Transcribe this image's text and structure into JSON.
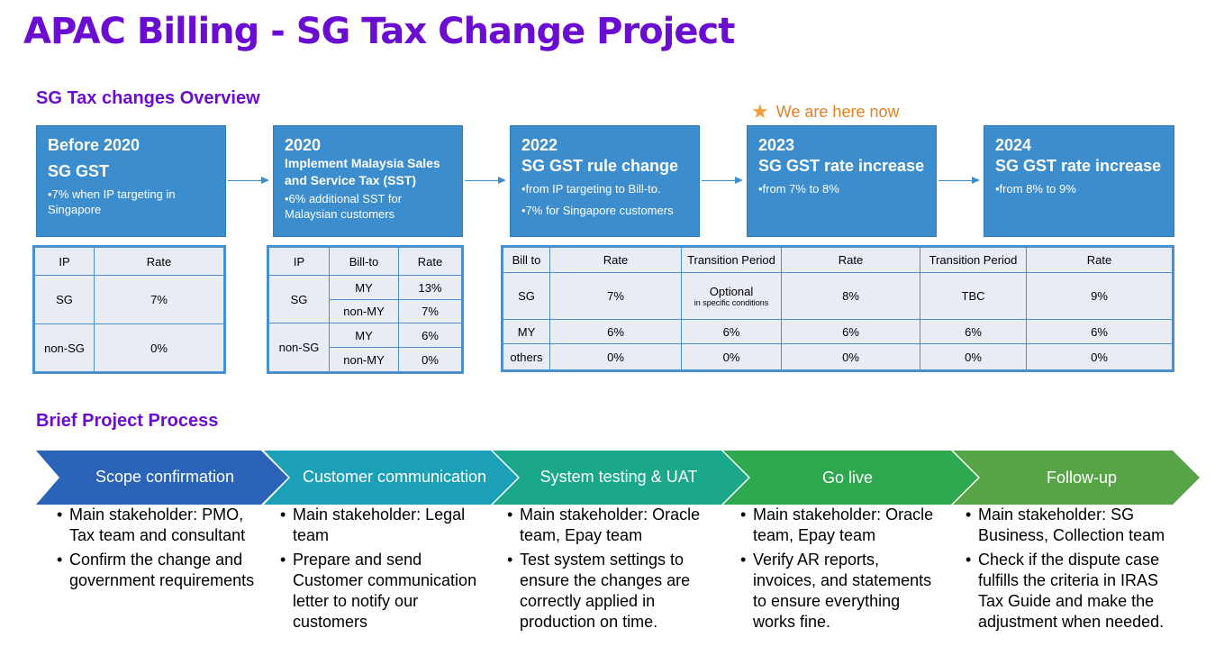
{
  "title": "APAC Billing - SG Tax Change Project",
  "overview_heading": "SG Tax changes Overview",
  "here_note": "We are here now",
  "timeline": [
    {
      "year": "Before 2020",
      "heading": "SG GST",
      "bullets": [
        "•7% when IP targeting in Singapore"
      ]
    },
    {
      "year": "2020",
      "heading": "Implement Malaysia Sales and Service Tax (SST)",
      "bullets": [
        "•6% additional SST for Malaysian customers"
      ]
    },
    {
      "year": "2022",
      "heading": "SG GST rule change",
      "bullets": [
        "•from IP targeting to Bill-to.",
        "•7% for Singapore customers"
      ]
    },
    {
      "year": "2023",
      "heading": "SG GST rate increase",
      "bullets": [
        "•from 7% to 8%"
      ]
    },
    {
      "year": "2024",
      "heading": "SG GST rate increase",
      "bullets": [
        "•from 8% to 9%"
      ]
    }
  ],
  "table1": {
    "headers": [
      "IP",
      "Rate"
    ],
    "rows": [
      [
        "SG",
        "7%"
      ],
      [
        "non-SG",
        "0%"
      ]
    ]
  },
  "table2": {
    "headers": [
      "IP",
      "Bill-to",
      "Rate"
    ],
    "groups": [
      {
        "ip": "SG",
        "rows": [
          [
            "MY",
            "13%"
          ],
          [
            "non-MY",
            "7%"
          ]
        ]
      },
      {
        "ip": "non-SG",
        "rows": [
          [
            "MY",
            "6%"
          ],
          [
            "non-MY",
            "0%"
          ]
        ]
      }
    ]
  },
  "table3": {
    "headers": [
      "Bill to",
      "Rate",
      "Transition Period",
      "Rate",
      "Transition Period",
      "Rate"
    ],
    "optional_main": "Optional",
    "optional_sub": "in specific conditions",
    "rows": [
      [
        "SG",
        "7%",
        "",
        "8%",
        "TBC",
        "9%"
      ],
      [
        "MY",
        "6%",
        "6%",
        "6%",
        "6%",
        "6%"
      ],
      [
        "others",
        "0%",
        "0%",
        "0%",
        "0%",
        "0%"
      ]
    ]
  },
  "process_heading": "Brief Project Process",
  "process": [
    {
      "label": "Scope confirmation",
      "color": "#2b63b8",
      "bullets": [
        "Main stakeholder: PMO, Tax team and consultant",
        "Confirm the change and government requirements"
      ]
    },
    {
      "label": "Customer communication",
      "color": "#1ba0b8",
      "bullets": [
        "Main stakeholder: Legal team",
        "Prepare and send Customer communication letter to notify our customers"
      ]
    },
    {
      "label": "System testing & UAT",
      "color": "#1aa78a",
      "bullets": [
        "Main stakeholder: Oracle team, Epay team",
        "Test system settings to ensure the changes are correctly applied in production on time."
      ]
    },
    {
      "label": "Go live",
      "color": "#2ea84f",
      "bullets": [
        "Main stakeholder: Oracle team, Epay team",
        "Verify AR reports, invoices, and statements to ensure everything works fine."
      ]
    },
    {
      "label": "Follow-up",
      "color": "#58a548",
      "bullets": [
        "Main stakeholder: SG Business, Collection team",
        "Check if the dispute case fulfills the criteria in IRAS Tax Guide and make the adjustment when needed."
      ]
    }
  ]
}
